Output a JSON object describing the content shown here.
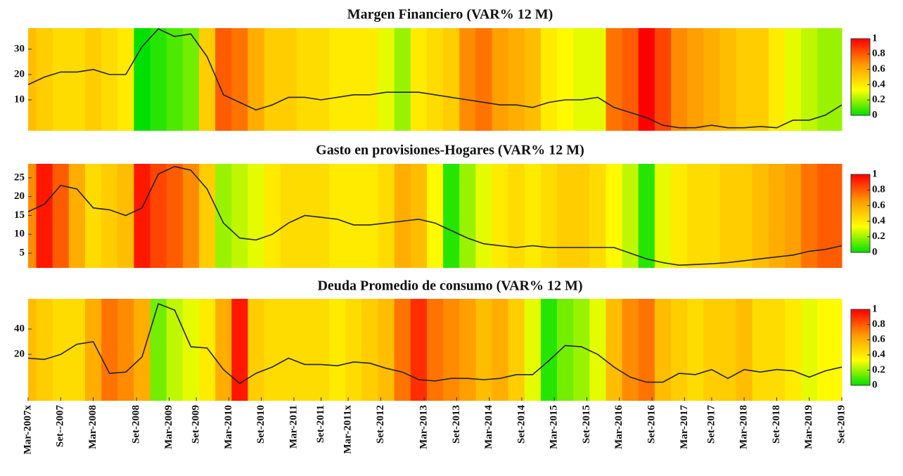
{
  "chart_data": [
    {
      "type": "heatline",
      "title": "Margen Financiero (VAR% 12 M)",
      "x": [
        0,
        3,
        6,
        9,
        12,
        15,
        18,
        21,
        24,
        27,
        30,
        33,
        36,
        39,
        42,
        45,
        48,
        51,
        54,
        57,
        60,
        63,
        66,
        69,
        72,
        75,
        78,
        81,
        84,
        87,
        90,
        93,
        96,
        99,
        102,
        105,
        108,
        111,
        114,
        117,
        120,
        123,
        126,
        129,
        132,
        135,
        138,
        141,
        144,
        147,
        150
      ],
      "values": [
        16,
        19,
        21,
        21,
        22,
        20,
        20,
        31,
        38,
        35,
        36,
        27,
        12,
        9,
        6,
        8,
        11,
        11,
        10,
        11,
        12,
        12,
        13,
        13,
        13,
        12,
        11,
        10,
        9,
        8,
        8,
        7,
        9,
        10,
        10,
        11,
        7,
        5,
        3,
        0,
        -1,
        -1,
        0,
        -1,
        -1,
        -0.5,
        -1,
        2,
        2,
        4,
        8
      ],
      "heat_values": [
        0.55,
        0.5,
        0.45,
        0.45,
        0.5,
        0.45,
        0.4,
        0.0,
        0.05,
        0.1,
        0.15,
        0.5,
        0.8,
        0.75,
        0.6,
        0.5,
        0.5,
        0.45,
        0.45,
        0.4,
        0.4,
        0.4,
        0.3,
        0.2,
        0.4,
        0.45,
        0.5,
        0.7,
        0.75,
        0.65,
        0.6,
        0.55,
        0.4,
        0.35,
        0.3,
        0.3,
        0.75,
        0.8,
        1.0,
        0.85,
        0.7,
        0.65,
        0.6,
        0.55,
        0.5,
        0.5,
        0.4,
        0.3,
        0.25,
        0.2,
        0.2
      ],
      "xlim": [
        0,
        150
      ],
      "ylim": [
        -2.2,
        38.3
      ],
      "yticks": [
        10,
        20,
        30
      ],
      "clim": [
        0,
        1
      ],
      "colorbar_ticks": [
        0,
        0.2,
        0.4,
        0.6,
        0.8,
        1
      ],
      "colormap": [
        "#00e000",
        "#ffff00",
        "#ff9a00",
        "#ff0000"
      ],
      "line_color": "#222222"
    },
    {
      "type": "heatline",
      "title": "Gasto en provisiones-Hogares (VAR% 12 M)",
      "x": [
        0,
        3,
        6,
        9,
        12,
        15,
        18,
        21,
        24,
        27,
        30,
        33,
        36,
        39,
        42,
        45,
        48,
        51,
        54,
        57,
        60,
        63,
        66,
        69,
        72,
        75,
        78,
        81,
        84,
        87,
        90,
        93,
        96,
        99,
        102,
        105,
        108,
        111,
        114,
        117,
        120,
        123,
        126,
        129,
        132,
        135,
        138,
        141,
        144,
        147,
        150
      ],
      "values": [
        16,
        18,
        23,
        22,
        17,
        16.5,
        15,
        17,
        26,
        28,
        27,
        22,
        13,
        9,
        8.5,
        10,
        13,
        15,
        14.5,
        14,
        12.5,
        12.5,
        13,
        13.5,
        14,
        13,
        11,
        9,
        7.5,
        7,
        6.5,
        7,
        6.5,
        6.5,
        6.5,
        6.5,
        6.5,
        5,
        3.5,
        2.5,
        1.8,
        2,
        2.2,
        2.5,
        3,
        3.5,
        4,
        4.5,
        5.5,
        6,
        7
      ],
      "heat_values": [
        0.7,
        0.95,
        0.8,
        0.6,
        0.45,
        0.5,
        0.55,
        0.95,
        0.85,
        0.8,
        0.7,
        0.5,
        0.2,
        0.25,
        0.3,
        0.4,
        0.45,
        0.45,
        0.45,
        0.4,
        0.4,
        0.4,
        0.45,
        0.6,
        0.55,
        0.35,
        0.05,
        0.2,
        0.3,
        0.4,
        0.45,
        0.4,
        0.45,
        0.5,
        0.5,
        0.45,
        0.35,
        0.25,
        0.05,
        0.3,
        0.4,
        0.45,
        0.45,
        0.5,
        0.5,
        0.55,
        0.6,
        0.65,
        0.75,
        0.8,
        0.8
      ],
      "xlim": [
        0,
        150
      ],
      "ylim": [
        1.1,
        28.7
      ],
      "yticks": [
        5,
        10,
        15,
        20,
        25
      ],
      "clim": [
        0,
        1
      ],
      "colorbar_ticks": [
        0,
        0.2,
        0.4,
        0.6,
        0.8,
        1
      ],
      "colormap": [
        "#00e000",
        "#ffff00",
        "#ff9a00",
        "#ff0000"
      ],
      "line_color": "#222222"
    },
    {
      "type": "heatline",
      "title": "Deuda Promedio de consumo (VAR% 12 M)",
      "x": [
        0,
        3,
        6,
        9,
        12,
        15,
        18,
        21,
        24,
        27,
        30,
        33,
        36,
        39,
        42,
        45,
        48,
        51,
        54,
        57,
        60,
        63,
        66,
        69,
        72,
        75,
        78,
        81,
        84,
        87,
        90,
        93,
        96,
        99,
        102,
        105,
        108,
        111,
        114,
        117,
        120,
        123,
        126,
        129,
        132,
        135,
        138,
        141,
        144,
        147,
        150
      ],
      "values": [
        17,
        16,
        20,
        28,
        30,
        5,
        6,
        18,
        60,
        55,
        26,
        25,
        8,
        -3,
        5,
        10,
        17,
        12,
        12,
        11,
        14,
        13,
        9,
        6,
        0,
        -1,
        1,
        1,
        0,
        1,
        4,
        4,
        15,
        27,
        26,
        20,
        10,
        2,
        -2,
        -2,
        5,
        4,
        8,
        1,
        8,
        6,
        8,
        7,
        2,
        7,
        10
      ],
      "heat_values": [
        0.55,
        0.5,
        0.45,
        0.45,
        0.6,
        0.75,
        0.7,
        0.6,
        0.15,
        0.25,
        0.3,
        0.4,
        0.6,
        0.95,
        0.5,
        0.45,
        0.45,
        0.45,
        0.45,
        0.4,
        0.45,
        0.5,
        0.55,
        0.75,
        0.9,
        0.75,
        0.7,
        0.65,
        0.55,
        0.6,
        0.5,
        0.3,
        0.05,
        0.15,
        0.2,
        0.3,
        0.55,
        0.7,
        0.75,
        0.55,
        0.5,
        0.45,
        0.5,
        0.5,
        0.55,
        0.45,
        0.45,
        0.4,
        0.3,
        0.35,
        0.35
      ],
      "xlim": [
        0,
        150
      ],
      "ylim": [
        -16.7,
        63.9
      ],
      "yticks": [
        20,
        40
      ],
      "xticks": [
        {
          "value": 0,
          "label": "Mar-2007x"
        },
        {
          "value": 6,
          "label": "Set--2007"
        },
        {
          "value": 12,
          "label": "Mar-2008"
        },
        {
          "value": 20,
          "label": "Set-2008"
        },
        {
          "value": 26,
          "label": "Mar-2009"
        },
        {
          "value": 31,
          "label": "Set-2009"
        },
        {
          "value": 37,
          "label": "Mar-2010"
        },
        {
          "value": 43,
          "label": "Set-2010"
        },
        {
          "value": 49,
          "label": "Mar-2011"
        },
        {
          "value": 54,
          "label": "Set-2011"
        },
        {
          "value": 59,
          "label": "Mar-2011x"
        },
        {
          "value": 65,
          "label": "Set-2012"
        },
        {
          "value": 73,
          "label": "Mar-2013"
        },
        {
          "value": 79,
          "label": "Set-2013"
        },
        {
          "value": 85,
          "label": "Mar-2014"
        },
        {
          "value": 91,
          "label": "Set-2014"
        },
        {
          "value": 97,
          "label": "Mar-2015"
        },
        {
          "value": 103,
          "label": "Set-2015"
        },
        {
          "value": 109,
          "label": "Mar-2016"
        },
        {
          "value": 115,
          "label": "Set-2016"
        },
        {
          "value": 121,
          "label": "Mar-2017"
        },
        {
          "value": 126,
          "label": "Set-2017"
        },
        {
          "value": 132,
          "label": "Mar-2018"
        },
        {
          "value": 138,
          "label": "Set-2018"
        },
        {
          "value": 144,
          "label": "Mar-2019"
        },
        {
          "value": 150,
          "label": "Set-2019"
        }
      ],
      "clim": [
        0,
        1
      ],
      "colorbar_ticks": [
        0,
        0.2,
        0.4,
        0.6,
        0.8,
        1
      ],
      "colormap": [
        "#00e000",
        "#ffff00",
        "#ff9a00",
        "#ff0000"
      ],
      "line_color": "#222222"
    }
  ]
}
